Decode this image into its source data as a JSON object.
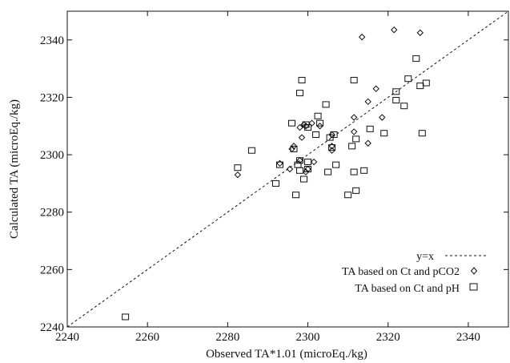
{
  "chart_data": {
    "type": "scatter",
    "xlabel": "Observed TA*1.01 (microEq./kg)",
    "ylabel": "Calculated TA (microEq./kg)",
    "xlim": [
      2240,
      2350
    ],
    "ylim": [
      2240,
      2350
    ],
    "x_ticks": [
      2240,
      2260,
      2280,
      2300,
      2320,
      2340
    ],
    "y_ticks": [
      2240,
      2260,
      2280,
      2300,
      2320,
      2340
    ],
    "grid": false,
    "legend_position": "bottom-right",
    "series": [
      {
        "name": "y=x",
        "style": "dashed-line",
        "points": [
          [
            2240,
            2240
          ],
          [
            2350,
            2350
          ]
        ]
      },
      {
        "name": "TA based on Ct and pCO2",
        "style": "diamond",
        "points": [
          [
            2313.5,
            2341
          ],
          [
            2321.5,
            2343.5
          ],
          [
            2328,
            2342.5
          ],
          [
            2315,
            2318.5
          ],
          [
            2317,
            2323
          ],
          [
            2315,
            2304
          ],
          [
            2318.5,
            2313
          ],
          [
            2311.5,
            2308
          ],
          [
            2311.5,
            2313
          ],
          [
            2306,
            2307
          ],
          [
            2306,
            2303
          ],
          [
            2306,
            2301.5
          ],
          [
            2303,
            2310
          ],
          [
            2301,
            2311
          ],
          [
            2301.5,
            2297.5
          ],
          [
            2299.5,
            2310
          ],
          [
            2299,
            2310.5
          ],
          [
            2298,
            2309.5
          ],
          [
            2298.5,
            2306
          ],
          [
            2296.5,
            2303
          ],
          [
            2296,
            2302
          ],
          [
            2293,
            2297
          ],
          [
            2295.5,
            2295
          ],
          [
            2298,
            2298
          ],
          [
            2299.5,
            2294
          ],
          [
            2300,
            2295
          ],
          [
            2282.5,
            2293
          ]
        ]
      },
      {
        "name": "TA based on Ct and pH",
        "style": "square",
        "points": [
          [
            2254.5,
            2243.5
          ],
          [
            2282.5,
            2295.5
          ],
          [
            2286,
            2301.5
          ],
          [
            2292,
            2290
          ],
          [
            2293,
            2296.5
          ],
          [
            2296,
            2311
          ],
          [
            2296.5,
            2302
          ],
          [
            2297,
            2286
          ],
          [
            2297.5,
            2296.5
          ],
          [
            2298,
            2294.5
          ],
          [
            2298,
            2298
          ],
          [
            2298,
            2321.5
          ],
          [
            2298.5,
            2326
          ],
          [
            2299,
            2291.5
          ],
          [
            2299.5,
            2310.5
          ],
          [
            2300,
            2295
          ],
          [
            2300,
            2297.5
          ],
          [
            2300,
            2309.5
          ],
          [
            2302,
            2307
          ],
          [
            2302.5,
            2313.5
          ],
          [
            2303,
            2311
          ],
          [
            2304.5,
            2317.5
          ],
          [
            2305,
            2294
          ],
          [
            2305.5,
            2306
          ],
          [
            2306,
            2302.5
          ],
          [
            2306.5,
            2307
          ],
          [
            2307,
            2296.5
          ],
          [
            2310,
            2286
          ],
          [
            2311,
            2303
          ],
          [
            2311.5,
            2294
          ],
          [
            2311.5,
            2326
          ],
          [
            2312,
            2287.5
          ],
          [
            2312,
            2305.5
          ],
          [
            2314,
            2294.5
          ],
          [
            2315.5,
            2309
          ],
          [
            2319,
            2307.5
          ],
          [
            2322,
            2319
          ],
          [
            2322,
            2322
          ],
          [
            2324,
            2317
          ],
          [
            2325,
            2326.5
          ],
          [
            2327,
            2333.5
          ],
          [
            2328,
            2324
          ],
          [
            2328.5,
            2307.5
          ],
          [
            2329.5,
            2325
          ]
        ]
      }
    ]
  }
}
